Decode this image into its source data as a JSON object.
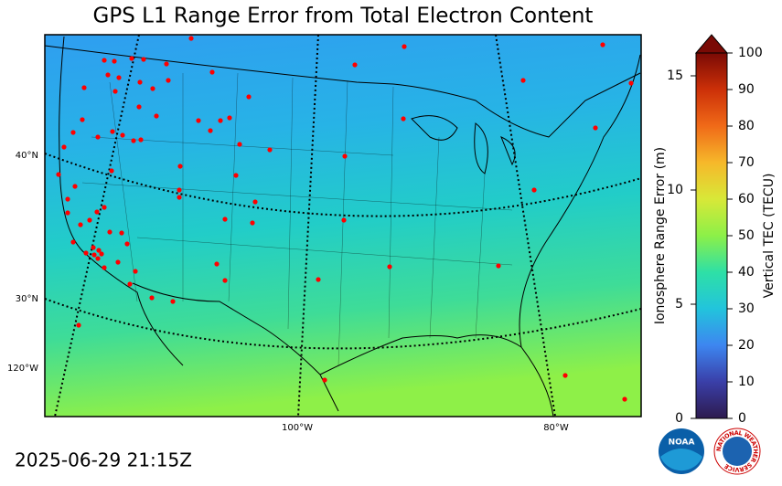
{
  "header": {
    "title": "GPS L1 Range Error from Total Electron Content"
  },
  "map": {
    "lat_labels": [
      "40°N",
      "30°N"
    ],
    "lon_labels": [
      "120°W",
      "100°W",
      "80°W"
    ]
  },
  "colorbar": {
    "left_label": "Ionosphere Range Error (m)",
    "left_lim": [
      0,
      16
    ],
    "left_ticks": [
      0,
      5,
      10,
      15
    ],
    "right_label": "Vertical TEC (TECU)",
    "right_lim": [
      0,
      100
    ],
    "right_ticks": [
      0,
      10,
      20,
      30,
      40,
      50,
      60,
      70,
      80,
      90,
      100
    ]
  },
  "footer": {
    "timestamp": "2025-06-29 21:15Z",
    "logos": [
      "NOAA",
      "NATIONAL WEATHER SERVICE"
    ]
  }
}
